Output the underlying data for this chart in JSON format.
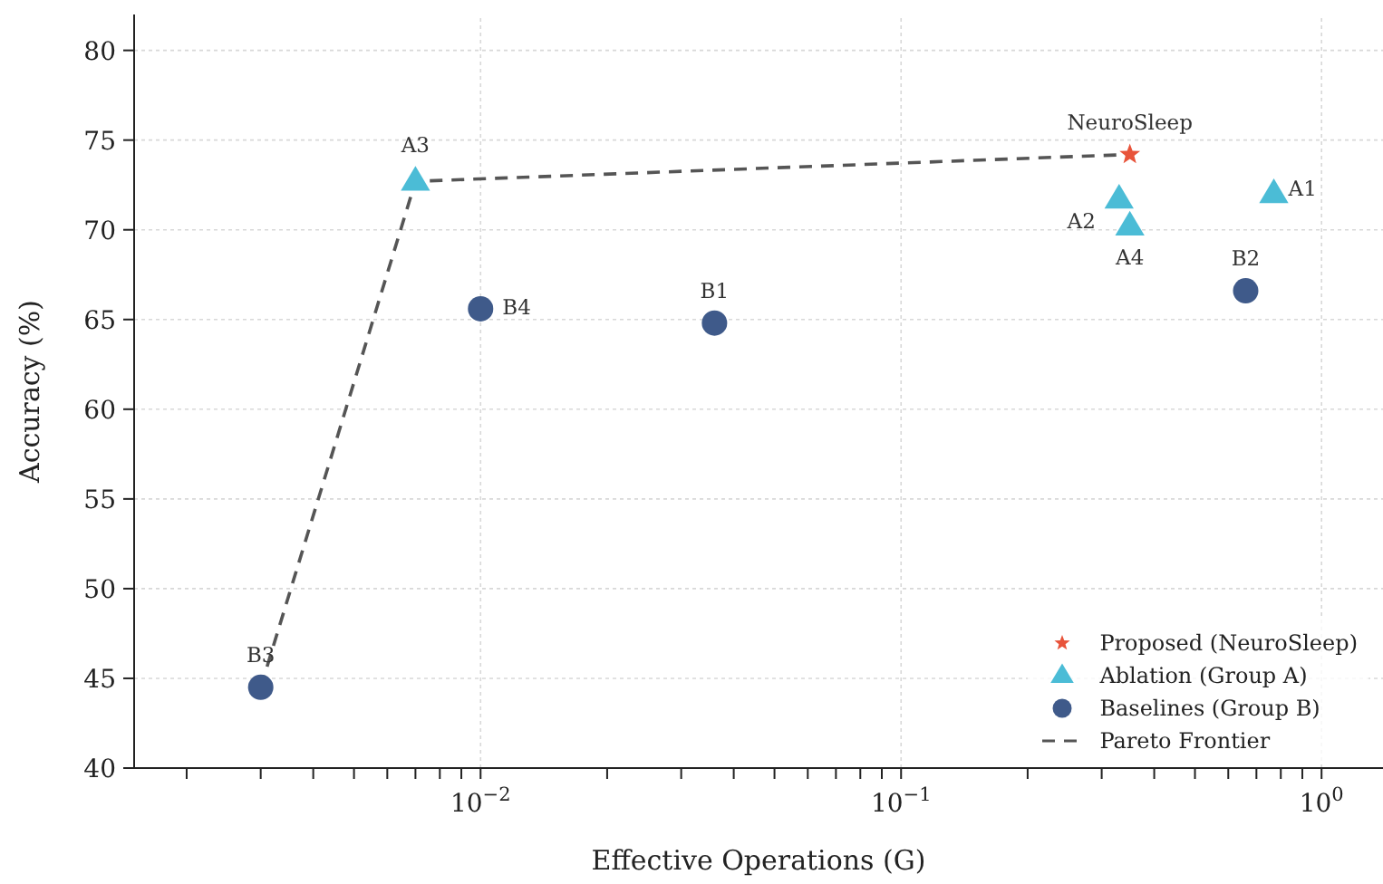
{
  "chart_data": {
    "type": "scatter",
    "xlabel": "Effective Operations (G)",
    "ylabel": "Accuracy (%)",
    "log": "x",
    "xlim": [
      0.0015,
      1.4
    ],
    "ylim": [
      40,
      82
    ],
    "xticks": [
      {
        "value": 0.002,
        "label": null
      },
      {
        "value": 0.003,
        "label": null
      },
      {
        "value": 0.004,
        "label": null
      },
      {
        "value": 0.005,
        "label": null
      },
      {
        "value": 0.006,
        "label": null
      },
      {
        "value": 0.007,
        "label": null
      },
      {
        "value": 0.008,
        "label": null
      },
      {
        "value": 0.009,
        "label": null
      },
      {
        "value": 0.01,
        "label": "10$^{−2}$"
      },
      {
        "value": 0.02,
        "label": null
      },
      {
        "value": 0.03,
        "label": null
      },
      {
        "value": 0.04,
        "label": null
      },
      {
        "value": 0.05,
        "label": null
      },
      {
        "value": 0.06,
        "label": null
      },
      {
        "value": 0.07,
        "label": null
      },
      {
        "value": 0.08,
        "label": null
      },
      {
        "value": 0.09,
        "label": null
      },
      {
        "value": 0.1,
        "label": "10$^{−1}$"
      },
      {
        "value": 0.2,
        "label": null
      },
      {
        "value": 0.3,
        "label": null
      },
      {
        "value": 0.4,
        "label": null
      },
      {
        "value": 0.5,
        "label": null
      },
      {
        "value": 0.6,
        "label": null
      },
      {
        "value": 0.7,
        "label": null
      },
      {
        "value": 0.8,
        "label": null
      },
      {
        "value": 0.9,
        "label": null
      },
      {
        "value": 1,
        "label": "10$^{0}$"
      }
    ],
    "yticks": [
      40,
      45,
      50,
      55,
      60,
      65,
      70,
      75,
      80
    ],
    "grid": true,
    "legend": "bottom right",
    "series": [
      {
        "name": "Proposed (NeuroSleep)",
        "type": "scatter",
        "marker": "star",
        "color": "#e8533a",
        "x": [
          0.35
        ],
        "values": [
          74.2
        ]
      },
      {
        "name": "Ablation (Group A)",
        "type": "scatter",
        "marker": "triangle",
        "color": "#4bbcd6",
        "x": [
          0.77,
          0.33,
          0.007,
          0.35
        ],
        "values": [
          72.0,
          71.7,
          72.7,
          70.2
        ]
      },
      {
        "name": "Baselines (Group B)",
        "type": "scatter",
        "marker": "circle",
        "color": "#3f5a8a",
        "x": [
          0.036,
          0.66,
          0.003,
          0.01
        ],
        "values": [
          64.8,
          66.6,
          44.5,
          65.6
        ]
      },
      {
        "name": "Pareto Frontier",
        "type": "line",
        "marker": "none",
        "line_style": "dashed",
        "color": "#555555",
        "x": [
          0.003,
          0.007,
          0.35
        ],
        "values": [
          44.5,
          72.7,
          74.2
        ]
      }
    ],
    "annotations": [
      {
        "text": "NeuroSleep",
        "x": 0.35,
        "y": 74.2
      },
      {
        "text": "A1",
        "x": 0.77,
        "y": 72.0
      },
      {
        "text": "A2",
        "x": 0.33,
        "y": 71.7
      },
      {
        "text": "A3",
        "x": 0.007,
        "y": 72.7
      },
      {
        "text": "A4",
        "x": 0.35,
        "y": 70.2
      },
      {
        "text": "B1",
        "x": 0.036,
        "y": 64.8
      },
      {
        "text": "B2",
        "x": 0.66,
        "y": 66.6
      },
      {
        "text": "B3",
        "x": 0.003,
        "y": 44.5
      },
      {
        "text": "B4",
        "x": 0.01,
        "y": 65.6
      }
    ]
  }
}
